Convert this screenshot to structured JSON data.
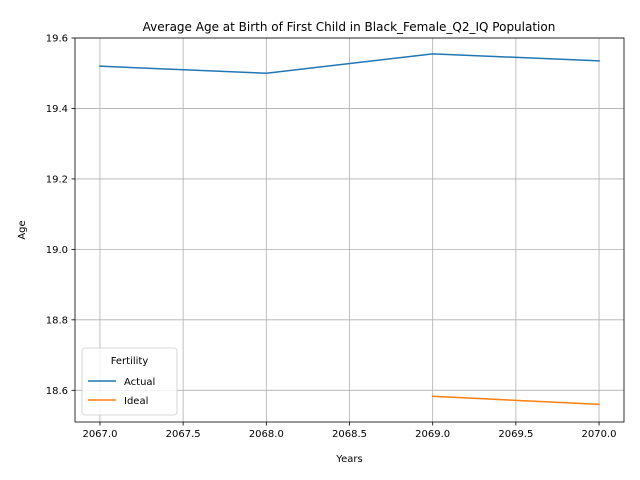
{
  "chart_data": {
    "type": "line",
    "title": "Average Age at Birth of First Child in Black_Female_Q2_IQ Population",
    "xlabel": "Years",
    "ylabel": "Age",
    "xlim": [
      2066.85,
      2070.15
    ],
    "ylim": [
      18.51,
      19.6
    ],
    "xticks": [
      2067.0,
      2067.5,
      2068.0,
      2068.5,
      2069.0,
      2069.5,
      2070.0
    ],
    "xtick_labels": [
      "2067.0",
      "2067.5",
      "2068.0",
      "2068.5",
      "2069.0",
      "2069.5",
      "2070.0"
    ],
    "yticks": [
      18.6,
      18.8,
      19.0,
      19.2,
      19.4,
      19.6
    ],
    "ytick_labels": [
      "18.6",
      "18.8",
      "19.0",
      "19.2",
      "19.4",
      "19.6"
    ],
    "grid": true,
    "legend": {
      "title": "Fertility",
      "location": "lower-left"
    },
    "series": [
      {
        "name": "Actual",
        "color": "#1f77b4",
        "x": [
          2067,
          2068,
          2069,
          2070
        ],
        "y": [
          19.52,
          19.5,
          19.555,
          19.535
        ]
      },
      {
        "name": "Ideal",
        "color": "#ff7f0e",
        "x": [
          2069,
          2070
        ],
        "y": [
          18.583,
          18.56
        ]
      }
    ]
  }
}
